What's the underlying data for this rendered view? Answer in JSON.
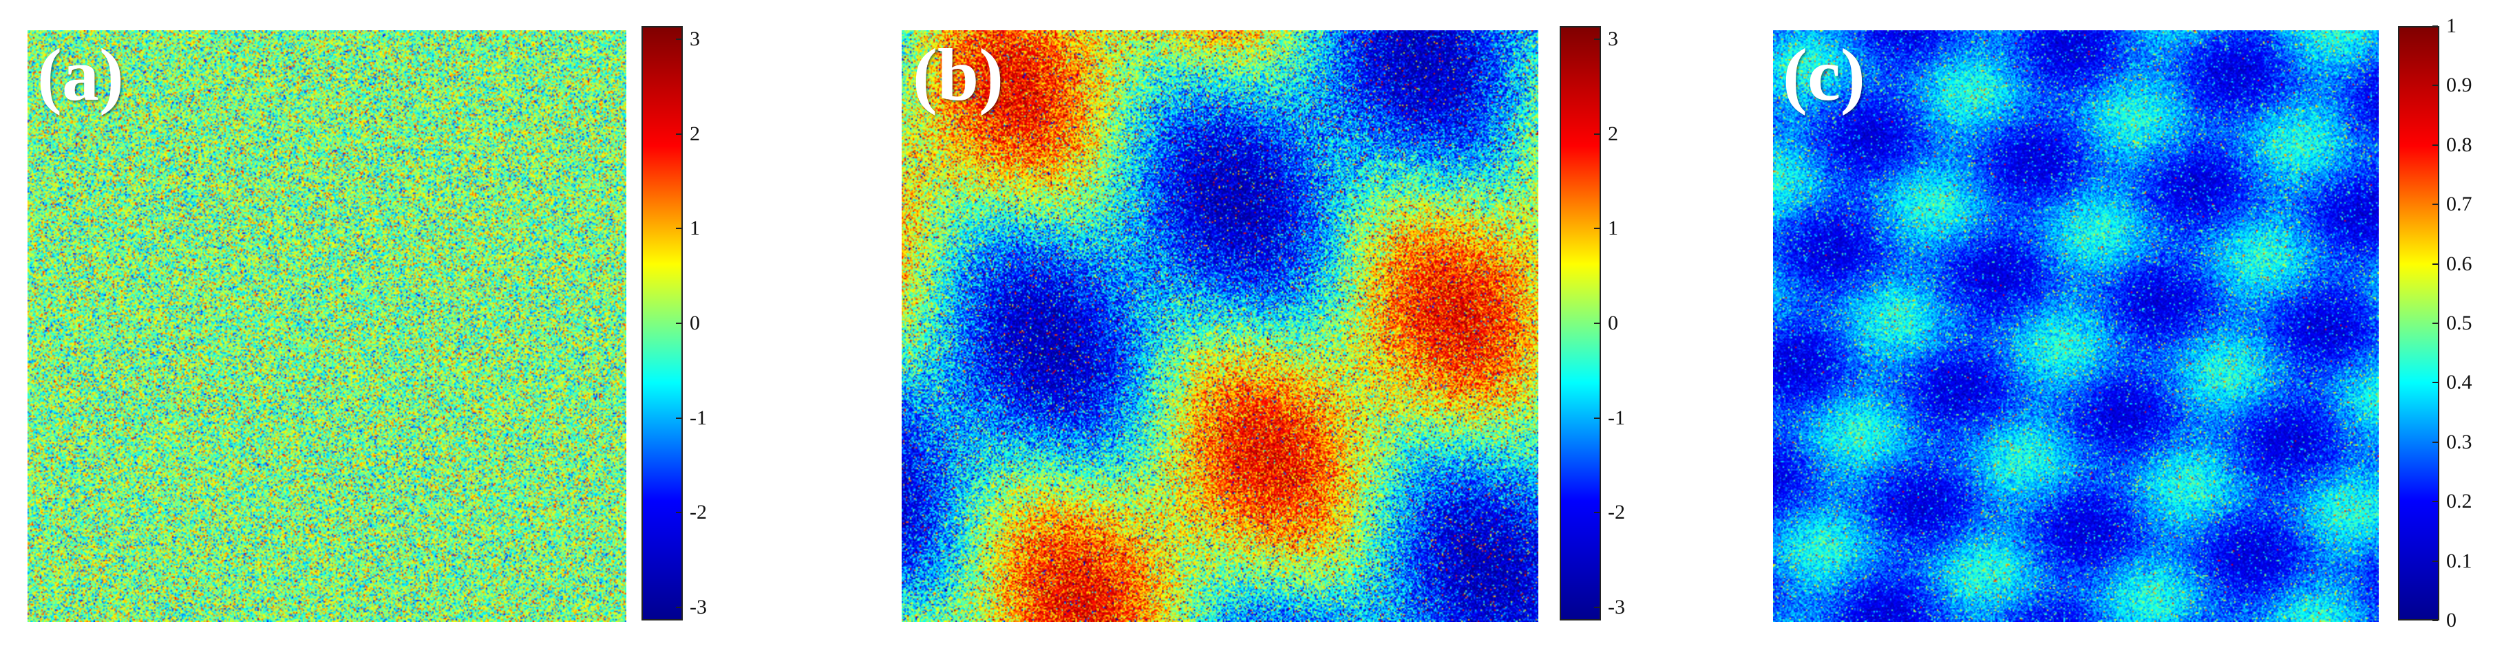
{
  "colormap": {
    "name": "jet",
    "stops": [
      "#00008f",
      "#0000ff",
      "#00ffff",
      "#ffff00",
      "#ff0000",
      "#800000"
    ]
  },
  "panels": [
    {
      "label": "(a)",
      "colorbar_ticks": [
        "3",
        "2",
        "1",
        "0",
        "-1",
        "-2",
        "-3"
      ],
      "range": [
        -3.14,
        3.14
      ],
      "pattern": "uniform-noise"
    },
    {
      "label": "(b)",
      "colorbar_ticks": [
        "3",
        "2",
        "1",
        "0",
        "-1",
        "-2",
        "-3"
      ],
      "range": [
        -3.14,
        3.14
      ],
      "pattern": "phase-bands"
    },
    {
      "label": "(c)",
      "colorbar_ticks": [
        "1",
        "0.9",
        "0.8",
        "0.7",
        "0.6",
        "0.5",
        "0.4",
        "0.3",
        "0.2",
        "0.1",
        "0"
      ],
      "range": [
        0,
        1
      ],
      "pattern": "coherence"
    }
  ]
}
